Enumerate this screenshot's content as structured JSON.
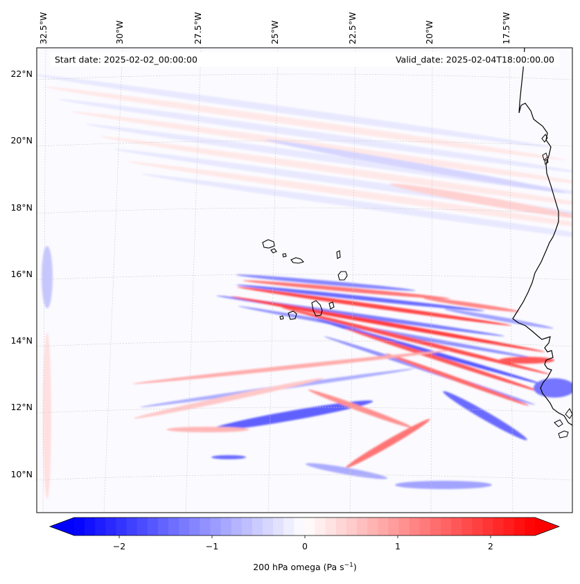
{
  "map": {
    "start_label": "Start date: 2025-02-02_00:00:00",
    "valid_label": "Valid_date: 2025-02-04T18:00:00.00",
    "lon_labels": [
      "32.5°W",
      "30°W",
      "27.5°W",
      "25°W",
      "22.5°W",
      "20°W",
      "17.5°W"
    ],
    "lat_labels": [
      "22°N",
      "20°N",
      "18°N",
      "16°N",
      "14°N",
      "12°N",
      "10°N"
    ]
  },
  "colorbar": {
    "tick_labels": [
      "−2",
      "−1",
      "0",
      "1",
      "2"
    ],
    "label_main": "200 hPa omega (Pa s",
    "label_exp": "−1",
    "label_end": ")",
    "range": [
      -2.75,
      2.75
    ],
    "colormap": "bwr",
    "color_min": "#0000ff",
    "color_mid": "#ffffff",
    "color_max": "#ff0000"
  }
}
